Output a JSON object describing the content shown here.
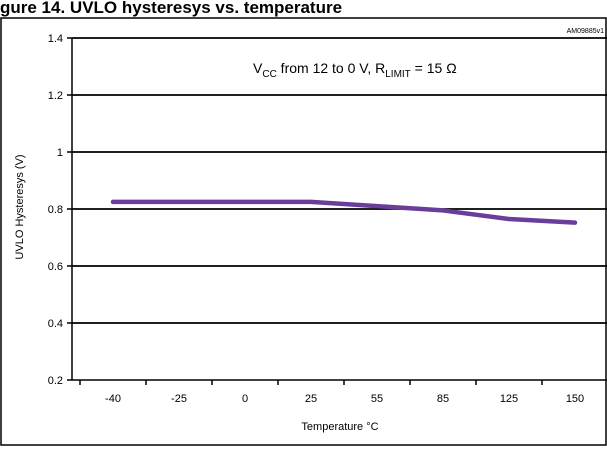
{
  "header": {
    "title_fragment": "gure 14. UVLO hysteresys vs. temperature"
  },
  "chart_data": {
    "type": "line",
    "doc_id": "AM09885v1",
    "annotation": {
      "vcc": "V",
      "vcc_sub": "CC",
      "mid": " from 12 to 0 V, R",
      "rlimit_sub": "LIMIT",
      "tail": " = 15 Ω"
    },
    "xlabel": "Temperature °C",
    "ylabel": "UVLO Hysteresys (V)",
    "categories": [
      "-40",
      "-25",
      "0",
      "25",
      "55",
      "85",
      "125",
      "150"
    ],
    "ylim": [
      0.2,
      1.4
    ],
    "yticks": [
      "0.2",
      "0.4",
      "0.6",
      "0.8",
      "1",
      "1.2",
      "1.4"
    ],
    "grid": true,
    "series": [
      {
        "color": "#6a3d9a",
        "values": [
          0.825,
          0.825,
          0.825,
          0.825,
          0.81,
          0.795,
          0.765,
          0.752
        ]
      }
    ]
  }
}
